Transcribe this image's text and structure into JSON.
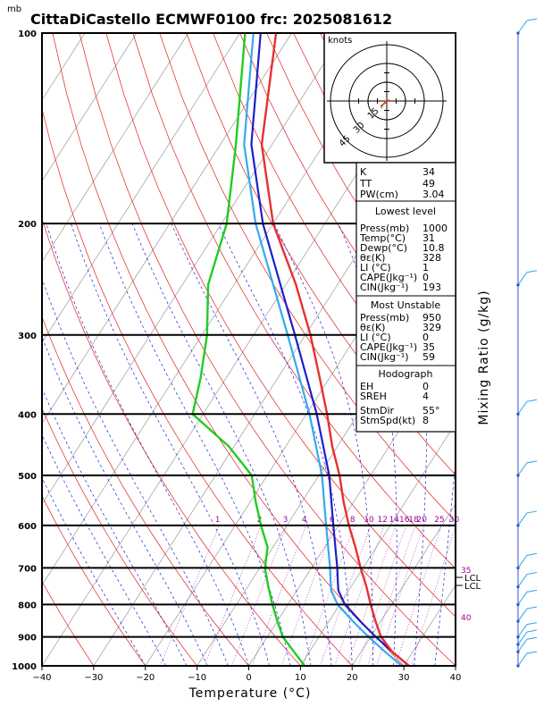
{
  "title": "CittaDiCastello  ECMWF0100  frc: 2025081612",
  "units": {
    "pressure": "mb",
    "hodo": "knots"
  },
  "axes": {
    "xlabel": "Temperature (°C)",
    "right_label": "Mixing Ratio (g/kg)"
  },
  "chart_data": {
    "type": "skew-t log-p",
    "x_range": [
      -40,
      40
    ],
    "p_range": [
      100,
      1000
    ],
    "x_ticks": [
      "−40",
      "−30",
      "−20",
      "−10",
      "0",
      "10",
      "20",
      "30",
      "40"
    ],
    "p_ticks": [
      "100",
      "200",
      "300",
      "400",
      "500",
      "600",
      "700",
      "800",
      "900",
      "1000"
    ],
    "mixing_ratio_labels": [
      "1",
      "2",
      "3",
      "4",
      "6",
      "8",
      "10",
      "12",
      "14",
      "16",
      "18",
      "20",
      "25",
      "30"
    ],
    "theta_e_labels": [
      "35",
      "40"
    ],
    "lcl_labels": [
      "LCL",
      "LCL"
    ],
    "hodo_rings": [
      "15",
      "30",
      "45"
    ],
    "temperature": [
      {
        "p": 1000,
        "t": 31
      },
      {
        "p": 950,
        "t": 26
      },
      {
        "p": 900,
        "t": 22
      },
      {
        "p": 850,
        "t": 19
      },
      {
        "p": 800,
        "t": 16
      },
      {
        "p": 750,
        "t": 13
      },
      {
        "p": 700,
        "t": 9.5
      },
      {
        "p": 650,
        "t": 6
      },
      {
        "p": 600,
        "t": 2
      },
      {
        "p": 550,
        "t": -2
      },
      {
        "p": 500,
        "t": -6
      },
      {
        "p": 450,
        "t": -11
      },
      {
        "p": 400,
        "t": -16
      },
      {
        "p": 350,
        "t": -22
      },
      {
        "p": 300,
        "t": -29
      },
      {
        "p": 250,
        "t": -38
      },
      {
        "p": 200,
        "t": -50
      },
      {
        "p": 150,
        "t": -62
      },
      {
        "p": 100,
        "t": -73
      }
    ],
    "dewpoint": [
      {
        "p": 1000,
        "t": 10.8
      },
      {
        "p": 950,
        "t": 7
      },
      {
        "p": 900,
        "t": 3
      },
      {
        "p": 850,
        "t": 0
      },
      {
        "p": 800,
        "t": -3
      },
      {
        "p": 750,
        "t": -6
      },
      {
        "p": 700,
        "t": -9
      },
      {
        "p": 650,
        "t": -11
      },
      {
        "p": 600,
        "t": -15
      },
      {
        "p": 550,
        "t": -19
      },
      {
        "p": 500,
        "t": -23
      },
      {
        "p": 450,
        "t": -31
      },
      {
        "p": 400,
        "t": -42
      },
      {
        "p": 350,
        "t": -45
      },
      {
        "p": 300,
        "t": -49
      },
      {
        "p": 250,
        "t": -55
      },
      {
        "p": 200,
        "t": -59
      },
      {
        "p": 150,
        "t": -67
      },
      {
        "p": 100,
        "t": -79
      }
    ],
    "parcel": [
      {
        "p": 1000,
        "t": 31
      },
      {
        "p": 950,
        "t": 26
      },
      {
        "p": 900,
        "t": 21
      },
      {
        "p": 850,
        "t": 16
      },
      {
        "p": 800,
        "t": 11
      },
      {
        "p": 760,
        "t": 8
      },
      {
        "p": 740,
        "t": 7
      },
      {
        "p": 700,
        "t": 5
      },
      {
        "p": 600,
        "t": -1
      },
      {
        "p": 500,
        "t": -8
      },
      {
        "p": 400,
        "t": -18
      },
      {
        "p": 300,
        "t": -32
      },
      {
        "p": 250,
        "t": -41
      },
      {
        "p": 200,
        "t": -52
      },
      {
        "p": 150,
        "t": -64
      },
      {
        "p": 100,
        "t": -76
      }
    ],
    "wind_barbs": [
      {
        "p": 1000
      },
      {
        "p": 950
      },
      {
        "p": 925
      },
      {
        "p": 900
      },
      {
        "p": 850
      },
      {
        "p": 800
      },
      {
        "p": 750
      },
      {
        "p": 700
      },
      {
        "p": 600
      },
      {
        "p": 500
      },
      {
        "p": 400
      },
      {
        "p": 250
      },
      {
        "p": 100
      }
    ]
  },
  "indices": [
    {
      "name": "K",
      "value": "34"
    },
    {
      "name": "TT",
      "value": "49"
    },
    {
      "name": "PW(cm)",
      "value": "3.04"
    }
  ],
  "lowest_level": {
    "header": "Lowest level",
    "rows": [
      {
        "name": "Press(mb)",
        "value": "1000"
      },
      {
        "name": "Temp(°C)",
        "value": "31"
      },
      {
        "name": "Dewp(°C)",
        "value": "10.8"
      },
      {
        "name": "θε(K)",
        "value": "328"
      },
      {
        "name": "LI (°C)",
        "value": "1"
      },
      {
        "name": "CAPE(Jkg⁻¹)",
        "value": "0"
      },
      {
        "name": "CIN(Jkg⁻¹)",
        "value": "193"
      }
    ]
  },
  "most_unstable": {
    "header": "Most Unstable",
    "rows": [
      {
        "name": "Press(mb)",
        "value": "950"
      },
      {
        "name": "θε(K)",
        "value": "329"
      },
      {
        "name": "LI (°C)",
        "value": "0"
      },
      {
        "name": "CAPE(Jkg⁻¹)",
        "value": "35"
      },
      {
        "name": "CIN(Jkg⁻¹)",
        "value": "59"
      }
    ]
  },
  "hodograph": {
    "header": "Hodograph",
    "rows": [
      {
        "name": "EH",
        "value": "0"
      },
      {
        "name": "SREH",
        "value": "4"
      },
      {
        "name": "StmDir",
        "value": "55°"
      },
      {
        "name": "StmSpd(kt)",
        "value": "8"
      }
    ]
  },
  "colors": {
    "temperature": "#e83030",
    "dewpoint": "#22cc22",
    "parcel": "#1e1ecc",
    "parcel2": "#33aaee",
    "isotherm": "#9a9a9a",
    "dry_adiabat": "#e02020",
    "moist_adiabat": "#2020d0",
    "mixing_ratio": "#b030b0",
    "wind": "#2aa6e8"
  }
}
